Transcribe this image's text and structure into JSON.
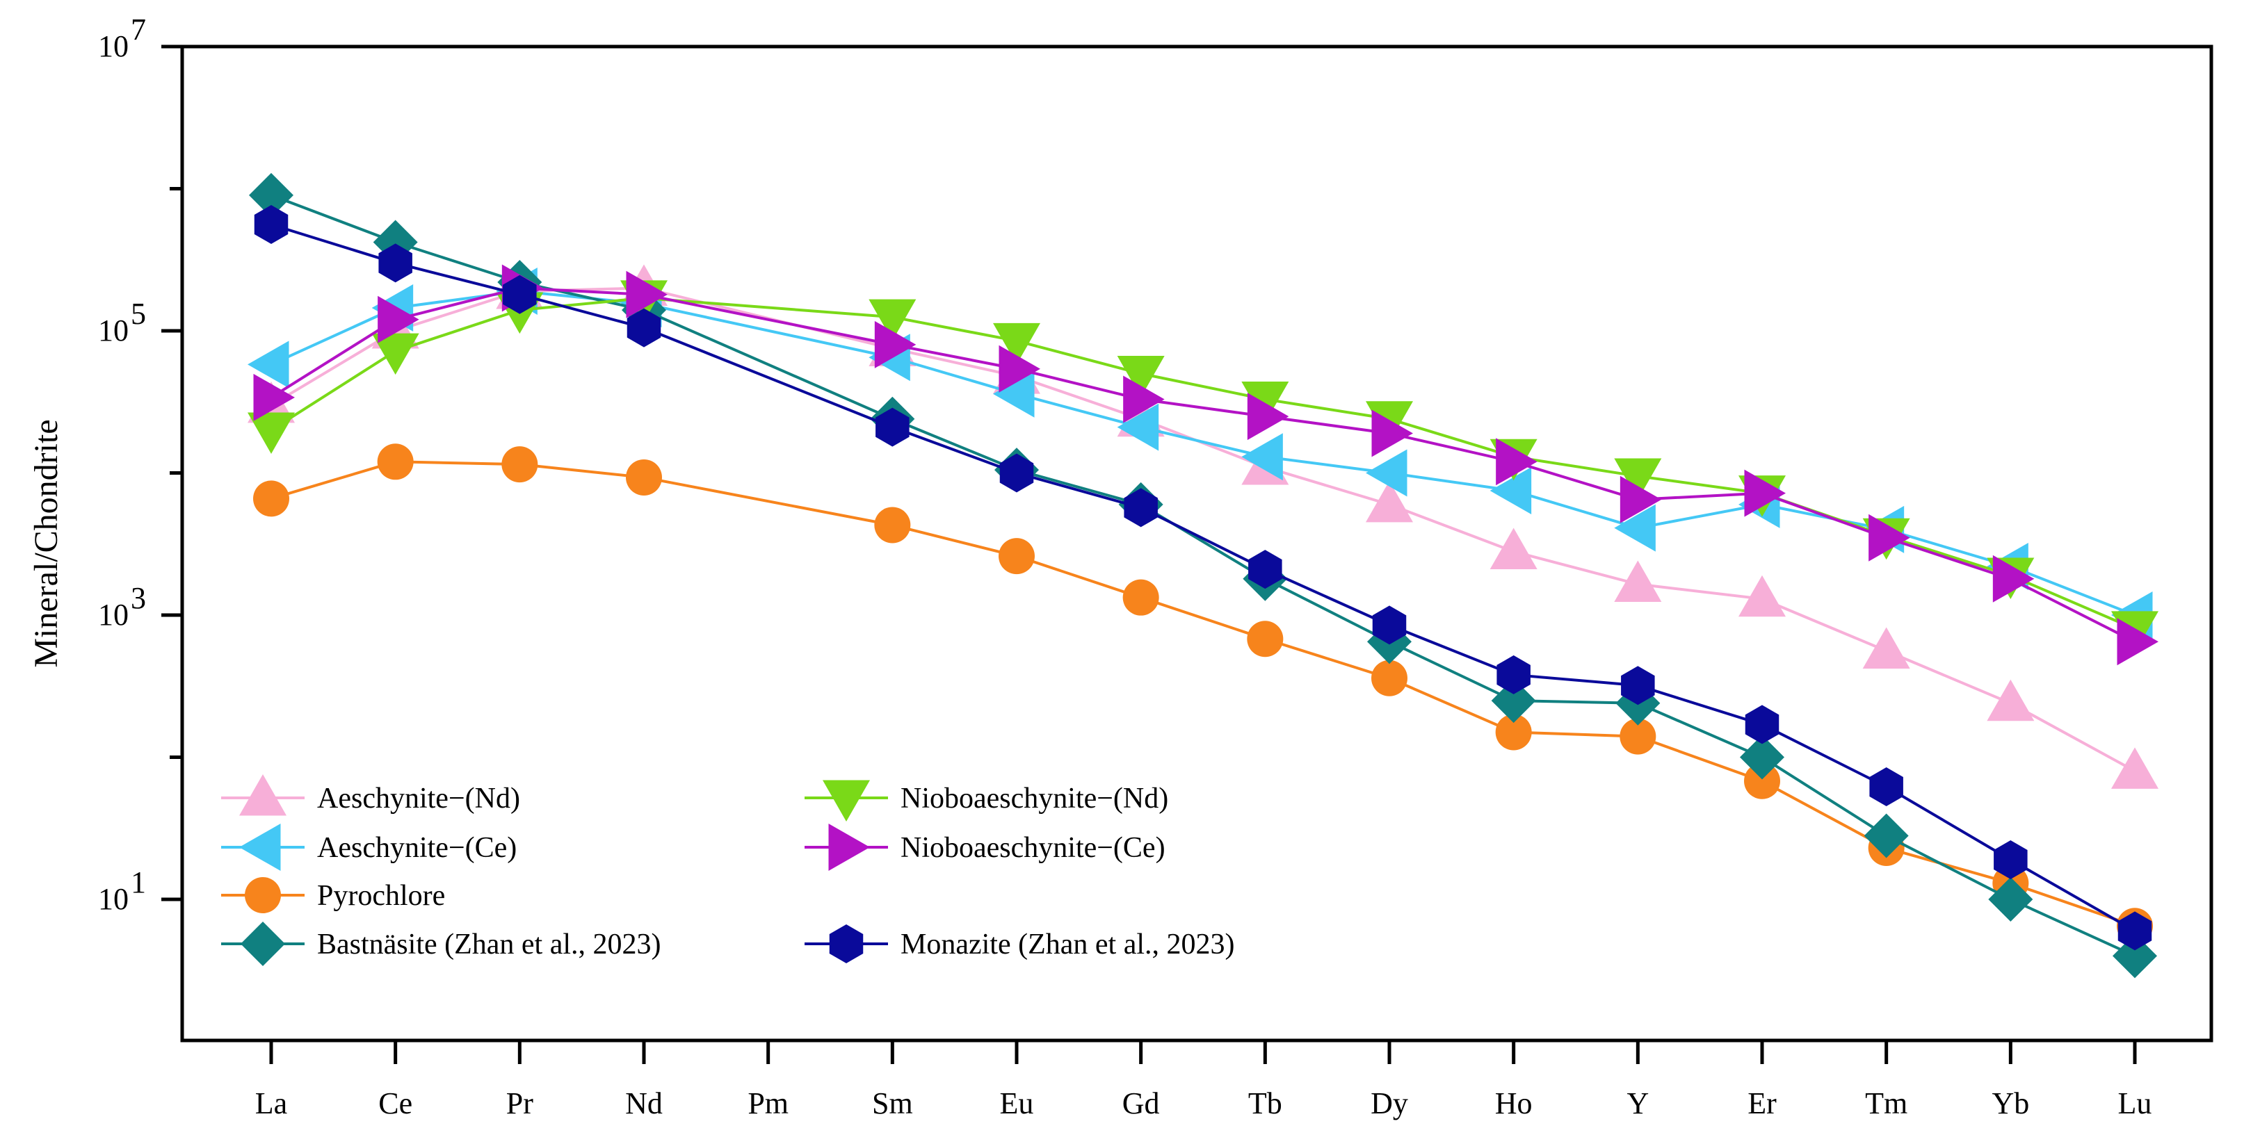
{
  "chart_data": {
    "type": "line",
    "ylabel": "Mineral/Chondrite",
    "xlabel": "",
    "yscale": "log",
    "ylim": [
      1,
      10000000
    ],
    "categories": [
      "La",
      "Ce",
      "Pr",
      "Nd",
      "Pm",
      "Sm",
      "Eu",
      "Gd",
      "Tb",
      "Dy",
      "Ho",
      "Y",
      "Er",
      "Tm",
      "Yb",
      "Lu"
    ],
    "yticks": [
      {
        "value": 10,
        "base": "10",
        "exp": "1"
      },
      {
        "value": 1000,
        "base": "10",
        "exp": "3"
      },
      {
        "value": 100000,
        "base": "10",
        "exp": "5"
      },
      {
        "value": 10000000,
        "base": "10",
        "exp": "7"
      }
    ],
    "legend_position": "bottom-left",
    "series": [
      {
        "name": "Aeschynite−(Nd)",
        "color": "#f7afd8",
        "marker": "triangle-up",
        "values": [
          30000,
          100000,
          190000,
          200000,
          null,
          75000,
          48000,
          24000,
          11000,
          6000,
          2800,
          1650,
          1300,
          560,
          240,
          80
        ]
      },
      {
        "name": "Aeschynite−(Ce)",
        "color": "#44c8f5",
        "marker": "triangle-left",
        "values": [
          58000,
          145000,
          190000,
          155000,
          null,
          65000,
          36000,
          21000,
          13000,
          10000,
          7500,
          4100,
          6000,
          4000,
          2200,
          1000
        ]
      },
      {
        "name": "Pyrochlore",
        "color": "#f7841c",
        "marker": "circle",
        "values": [
          6600,
          12000,
          11500,
          9300,
          null,
          4300,
          2600,
          1330,
          680,
          360,
          150,
          140,
          68,
          23,
          13,
          6.5
        ]
      },
      {
        "name": "Bastnäsite (Zhan et al., 2023)",
        "color": "#108080",
        "marker": "diamond",
        "values": [
          900000,
          420000,
          220000,
          140000,
          null,
          24000,
          10500,
          6000,
          1800,
          650,
          250,
          240,
          100,
          28,
          10,
          4
        ]
      },
      {
        "name": "Nioboaeschynite−(Nd)",
        "color": "#7ad918",
        "marker": "triangle-down",
        "values": [
          20000,
          72000,
          140000,
          170000,
          null,
          125000,
          85000,
          50000,
          33000,
          24000,
          13000,
          9500,
          7200,
          3600,
          1900,
          800
        ]
      },
      {
        "name": "Nioboaeschynite−(Ce)",
        "color": "#b312c5",
        "marker": "triangle-right",
        "values": [
          34000,
          120000,
          200000,
          180000,
          null,
          80000,
          54000,
          33000,
          25000,
          19000,
          12000,
          6500,
          7200,
          3500,
          1800,
          650
        ]
      },
      {
        "name": "Monazite  (Zhan et al., 2023)",
        "color": "#0a0a9a",
        "marker": "hexagon",
        "values": [
          560000,
          300000,
          180000,
          105000,
          null,
          21000,
          10000,
          5700,
          2100,
          850,
          380,
          320,
          170,
          62,
          19,
          6
        ]
      }
    ]
  }
}
